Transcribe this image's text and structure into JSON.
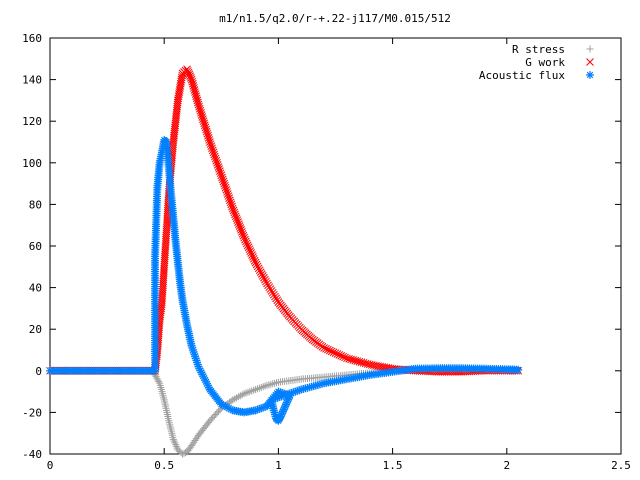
{
  "chart_data": {
    "type": "scatter",
    "title": "m1/n1.5/q2.0/r-+.22-j117/M0.015/512",
    "xlabel": "",
    "ylabel": "",
    "xlim": [
      0,
      2.5
    ],
    "ylim": [
      -40,
      160
    ],
    "x_ticks": [
      "0",
      "0.5",
      "1",
      "1.5",
      "2",
      "2.5"
    ],
    "y_ticks": [
      "-40",
      "-20",
      "0",
      "20",
      "40",
      "60",
      "80",
      "100",
      "120",
      "140",
      "160"
    ],
    "grid": false,
    "legend_position": "top-right",
    "series": [
      {
        "name": "R stress",
        "marker": "+",
        "color": "#a0a0a0",
        "points": [
          [
            0.0,
            0
          ],
          [
            0.1,
            0
          ],
          [
            0.2,
            0
          ],
          [
            0.3,
            0
          ],
          [
            0.4,
            0
          ],
          [
            0.45,
            0
          ],
          [
            0.46,
            -2
          ],
          [
            0.48,
            -6
          ],
          [
            0.5,
            -14
          ],
          [
            0.52,
            -24
          ],
          [
            0.54,
            -33
          ],
          [
            0.56,
            -38
          ],
          [
            0.58,
            -40
          ],
          [
            0.6,
            -39
          ],
          [
            0.62,
            -36
          ],
          [
            0.65,
            -31
          ],
          [
            0.7,
            -24
          ],
          [
            0.75,
            -18
          ],
          [
            0.8,
            -14
          ],
          [
            0.85,
            -11
          ],
          [
            0.9,
            -9
          ],
          [
            0.95,
            -7
          ],
          [
            1.0,
            -5.5
          ],
          [
            1.1,
            -4
          ],
          [
            1.2,
            -3
          ],
          [
            1.3,
            -2
          ],
          [
            1.4,
            -1
          ],
          [
            1.5,
            0
          ],
          [
            1.6,
            0.8
          ],
          [
            1.7,
            1
          ],
          [
            1.8,
            1
          ],
          [
            1.9,
            0.8
          ],
          [
            2.0,
            0.5
          ],
          [
            2.05,
            0.3
          ]
        ]
      },
      {
        "name": "G work",
        "marker": "x",
        "color": "#ff0000",
        "points": [
          [
            0.0,
            0
          ],
          [
            0.1,
            0
          ],
          [
            0.2,
            0
          ],
          [
            0.3,
            0
          ],
          [
            0.4,
            0
          ],
          [
            0.46,
            0
          ],
          [
            0.47,
            9
          ],
          [
            0.48,
            24
          ],
          [
            0.49,
            33
          ],
          [
            0.5,
            50
          ],
          [
            0.51,
            67
          ],
          [
            0.52,
            85
          ],
          [
            0.54,
            110
          ],
          [
            0.56,
            130
          ],
          [
            0.58,
            143
          ],
          [
            0.6,
            145
          ],
          [
            0.62,
            140
          ],
          [
            0.65,
            128
          ],
          [
            0.7,
            110
          ],
          [
            0.75,
            94
          ],
          [
            0.8,
            78
          ],
          [
            0.85,
            64
          ],
          [
            0.9,
            52
          ],
          [
            0.95,
            42
          ],
          [
            1.0,
            33
          ],
          [
            1.05,
            26
          ],
          [
            1.1,
            20
          ],
          [
            1.15,
            15
          ],
          [
            1.2,
            11
          ],
          [
            1.3,
            6
          ],
          [
            1.4,
            3
          ],
          [
            1.5,
            1
          ],
          [
            1.6,
            0
          ],
          [
            1.7,
            -0.5
          ],
          [
            1.8,
            -0.5
          ],
          [
            1.9,
            0
          ],
          [
            2.0,
            0
          ],
          [
            2.05,
            0
          ]
        ]
      },
      {
        "name": "Acoustic flux",
        "marker": "*",
        "color": "#0080ff",
        "points": [
          [
            0.0,
            0
          ],
          [
            0.1,
            0
          ],
          [
            0.2,
            0
          ],
          [
            0.3,
            0
          ],
          [
            0.4,
            0
          ],
          [
            0.46,
            0
          ],
          [
            0.46,
            55
          ],
          [
            0.47,
            88
          ],
          [
            0.48,
            100
          ],
          [
            0.49,
            105
          ],
          [
            0.5,
            111
          ],
          [
            0.51,
            110
          ],
          [
            0.52,
            98
          ],
          [
            0.53,
            85
          ],
          [
            0.54,
            74
          ],
          [
            0.55,
            62
          ],
          [
            0.56,
            52
          ],
          [
            0.57,
            42
          ],
          [
            0.58,
            34
          ],
          [
            0.6,
            22
          ],
          [
            0.62,
            12
          ],
          [
            0.65,
            2
          ],
          [
            0.7,
            -9
          ],
          [
            0.75,
            -16
          ],
          [
            0.8,
            -19
          ],
          [
            0.85,
            -20
          ],
          [
            0.9,
            -19
          ],
          [
            0.95,
            -17
          ],
          [
            0.97,
            -14
          ],
          [
            0.98,
            -19
          ],
          [
            0.99,
            -23
          ],
          [
            1.0,
            -24
          ],
          [
            1.01,
            -22
          ],
          [
            1.03,
            -17
          ],
          [
            1.05,
            -12
          ],
          [
            1.0,
            -10
          ],
          [
            0.97,
            -14
          ],
          [
            1.1,
            -9
          ],
          [
            1.2,
            -6
          ],
          [
            1.3,
            -4
          ],
          [
            1.4,
            -2
          ],
          [
            1.5,
            -0.5
          ],
          [
            1.6,
            1
          ],
          [
            1.7,
            1.2
          ],
          [
            1.8,
            1.2
          ],
          [
            1.9,
            1
          ],
          [
            2.0,
            0.7
          ],
          [
            2.05,
            0.5
          ]
        ]
      }
    ]
  }
}
